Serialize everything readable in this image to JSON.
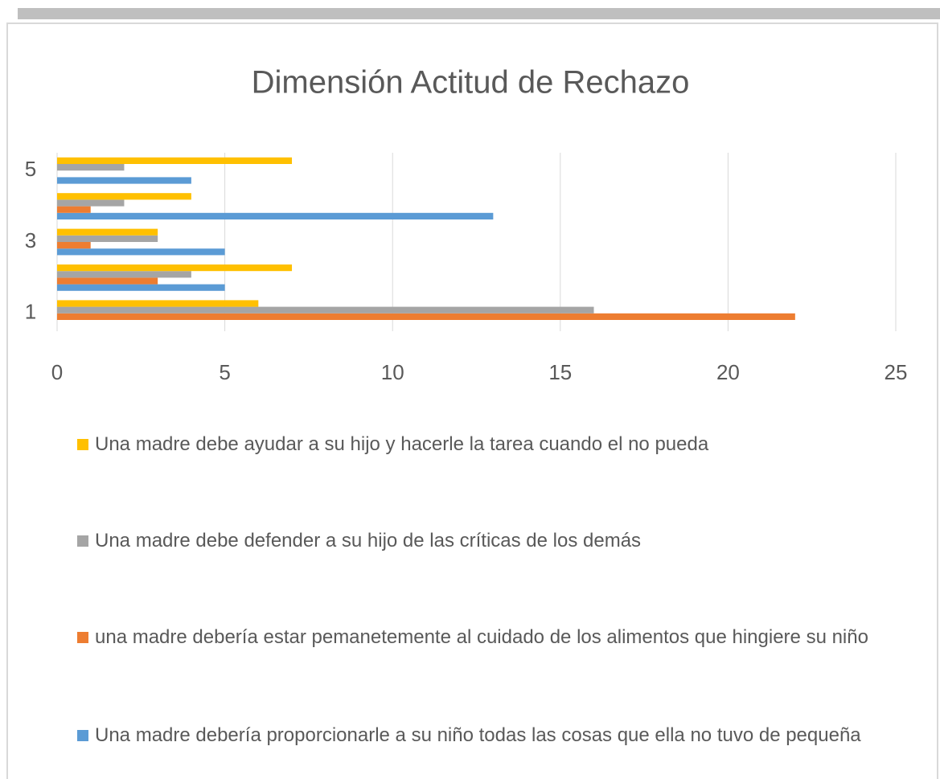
{
  "chart_data": {
    "type": "barh",
    "title": "Dimensión Actitud de Rechazo",
    "categories": [
      "1",
      null,
      "3",
      null,
      "5"
    ],
    "series": [
      {
        "name": "Una madre debería proporcionarle a su niño todas las cosas que ella no tuvo de pequeña",
        "color": "#5b9bd5",
        "values": [
          0,
          5,
          5,
          13,
          4
        ]
      },
      {
        "name": "una madre debería estar pemanetemente al cuidado de los alimentos que hingiere su niño",
        "color": "#ed7d31",
        "values": [
          22,
          3,
          1,
          1,
          0
        ]
      },
      {
        "name": "Una madre debe defender a su hijo de las críticas de los demás",
        "color": "#a5a5a5",
        "values": [
          16,
          4,
          3,
          2,
          2
        ]
      },
      {
        "name": "Una madre debe ayudar a su hijo y hacerle la tarea cuando el no pueda",
        "color": "#ffc000",
        "values": [
          6,
          7,
          3,
          4,
          7
        ]
      }
    ],
    "xlim": [
      0,
      25
    ],
    "xticks": [
      0,
      5,
      10,
      15,
      20,
      25
    ],
    "grid": true,
    "legend": "bottom"
  }
}
